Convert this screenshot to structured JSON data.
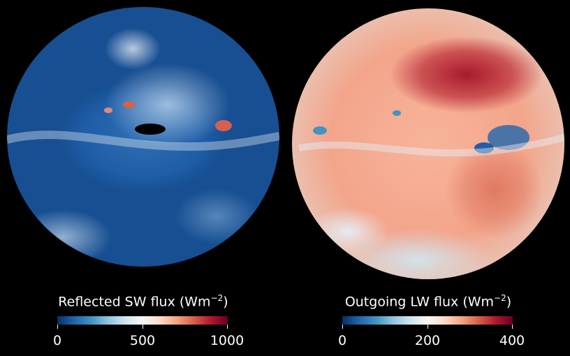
{
  "panels": [
    {
      "title_main": "Reflected SW flux (Wm",
      "title_exp": "−2",
      "title_close": ")",
      "colormap": "RdBu_r",
      "ticks": [
        "0",
        "500",
        "1000"
      ],
      "range": [
        0,
        1000
      ]
    },
    {
      "title_main": "Outgoing LW flux (Wm",
      "title_exp": "−2",
      "title_close": ")",
      "colormap": "RdBu_r",
      "ticks": [
        "0",
        "200",
        "400"
      ],
      "range": [
        0,
        400
      ]
    }
  ],
  "colors": {
    "background": "#000000",
    "cmap_low": "#1f5ea8",
    "cmap_mid": "#f7f7f7",
    "cmap_high": "#8b0a22"
  }
}
